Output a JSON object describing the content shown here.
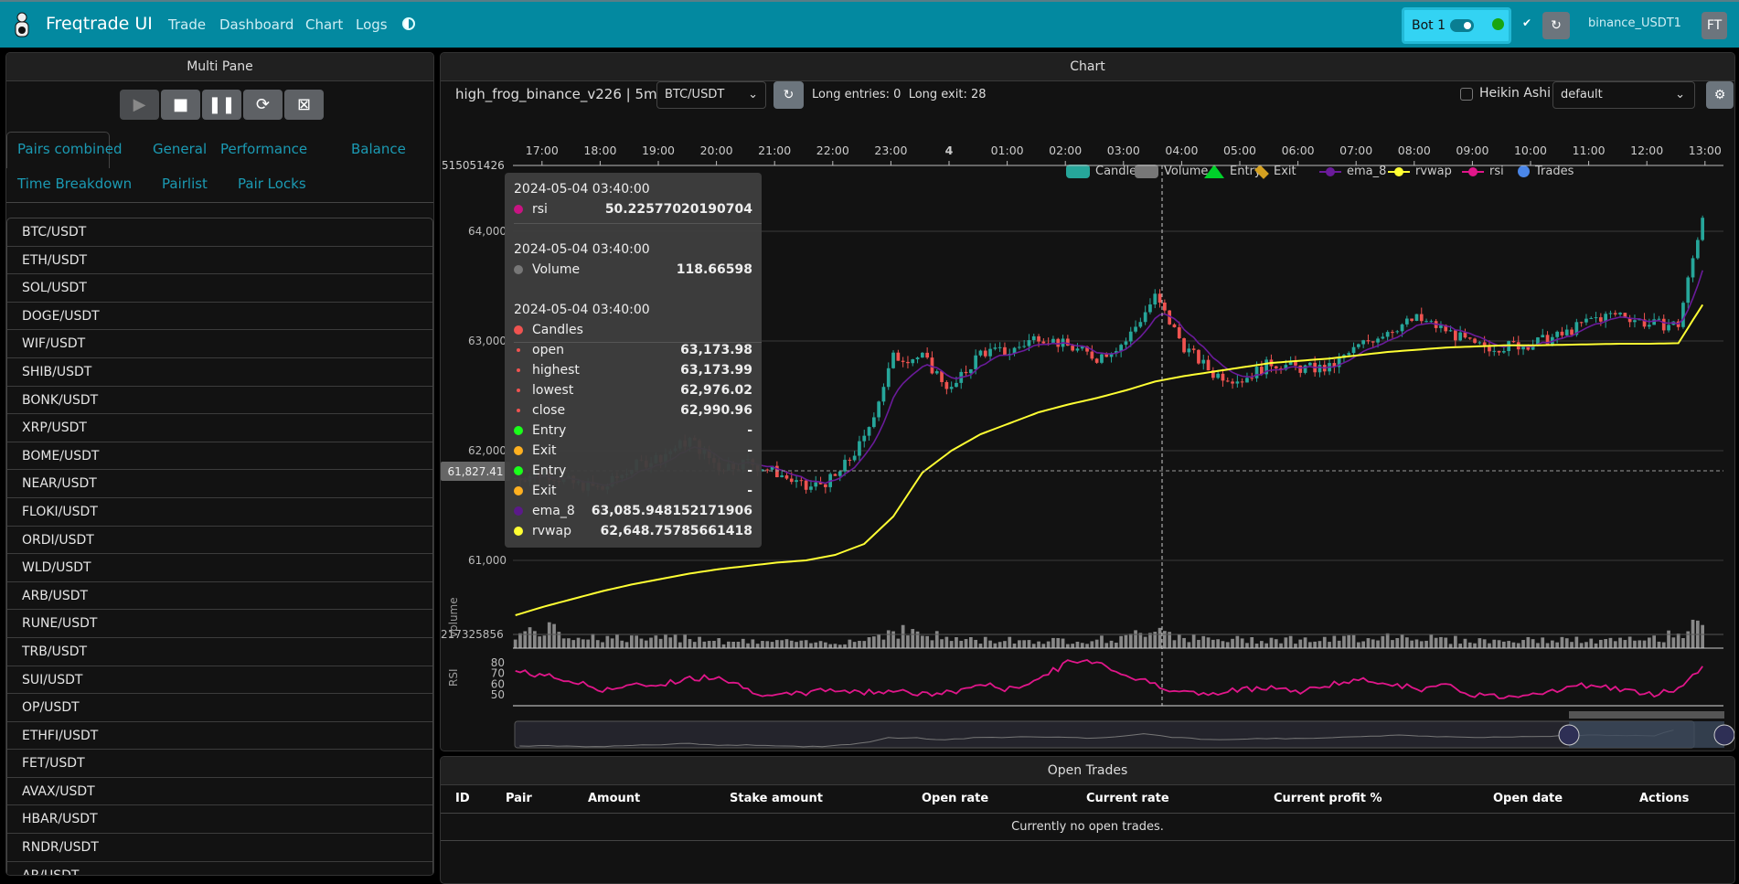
{
  "nav": {
    "brand": "Freqtrade UI",
    "links": [
      "Trade",
      "Dashboard",
      "Chart",
      "Logs"
    ],
    "bot_name": "Bot 1",
    "exchange": "binance_USDT1",
    "avatar": "FT",
    "bot_status_color": "#19a50f",
    "accent": "#0389a0"
  },
  "left": {
    "title": "Multi Pane",
    "controls": [
      "play-icon",
      "stop-icon",
      "pause-icon",
      "reload-icon",
      "force-exit-icon"
    ],
    "tabs": [
      "Pairs combined",
      "General",
      "Performance",
      "Balance",
      "Time Breakdown",
      "Pairlist",
      "Pair Locks"
    ],
    "active_tab": "Pairs combined",
    "pairs": [
      "BTC/USDT",
      "ETH/USDT",
      "SOL/USDT",
      "DOGE/USDT",
      "WIF/USDT",
      "SHIB/USDT",
      "BONK/USDT",
      "XRP/USDT",
      "BOME/USDT",
      "NEAR/USDT",
      "FLOKI/USDT",
      "ORDI/USDT",
      "WLD/USDT",
      "ARB/USDT",
      "RUNE/USDT",
      "TRB/USDT",
      "SUI/USDT",
      "OP/USDT",
      "ETHFI/USDT",
      "FET/USDT",
      "AVAX/USDT",
      "HBAR/USDT",
      "RNDR/USDT",
      "AR/USDT"
    ]
  },
  "chart": {
    "title": "Chart",
    "strategy": "high_frog_binance_v226 | 5m",
    "pair": "BTC/USDT",
    "signals": "Long entries: 0  Long exit: 28",
    "heikin_label": "Heikin Ashi",
    "heikin_checked": false,
    "plot_config": "default",
    "legend": [
      {
        "label": "Candles",
        "color": "#26a69a"
      },
      {
        "label": "Volume",
        "color": "#777777"
      },
      {
        "label": "Entry",
        "color": "#00d12a"
      },
      {
        "label": "Exit",
        "color": "#d4a020"
      },
      {
        "label": "ema_8",
        "color": "#6a1b9a"
      },
      {
        "label": "rvwap",
        "color": "#ffff33"
      },
      {
        "label": "rsi",
        "color": "#e0168a"
      },
      {
        "label": "Trades",
        "color": "#4a86e8"
      }
    ],
    "time_ticks": [
      "17:00",
      "18:00",
      "19:00",
      "20:00",
      "21:00",
      "22:00",
      "23:00",
      "4",
      "01:00",
      "02:00",
      "03:00",
      "04:00",
      "05:00",
      "06:00",
      "07:00",
      "08:00",
      "09:00",
      "10:00",
      "11:00",
      "12:00",
      "13:00"
    ],
    "price_ticks": [
      "64,000",
      "63,000",
      "62,000",
      "61,000"
    ],
    "top_label": "515051426",
    "volume_label": "217325856",
    "volume_axis": "Volume",
    "rsi_axis": "RSI",
    "rsi_ticks": [
      "80",
      "70",
      "60",
      "50"
    ],
    "crosshair_price": "61,827.41",
    "tooltip": {
      "date": "2024-05-04 03:40:00",
      "rsi": {
        "label": "rsi",
        "value": "50.22577020190704"
      },
      "volume": {
        "label": "Volume",
        "value": "118.66598"
      },
      "candles": "Candles",
      "ohlc": [
        {
          "label": "open",
          "value": "63,173.98"
        },
        {
          "label": "highest",
          "value": "63,173.99"
        },
        {
          "label": "lowest",
          "value": "62,976.02"
        },
        {
          "label": "close",
          "value": "62,990.96"
        }
      ],
      "signals": [
        {
          "label": "Entry",
          "value": "-",
          "color": "#1aff1a"
        },
        {
          "label": "Exit",
          "value": "-",
          "color": "#ffb020"
        },
        {
          "label": "Entry",
          "value": "-",
          "color": "#1aff1a"
        },
        {
          "label": "Exit",
          "value": "-",
          "color": "#ffb020"
        }
      ],
      "ema": {
        "label": "ema_8",
        "value": "63,085.948152171906"
      },
      "rvwap": {
        "label": "rvwap",
        "value": "62,648.75785661418"
      }
    },
    "chart_data": {
      "type": "candlestick",
      "x_start": "16:30",
      "x_step": "30min",
      "close": [
        61750,
        61800,
        61700,
        61650,
        61850,
        61950,
        62100,
        61850,
        61900,
        61800,
        61650,
        61750,
        62100,
        62850,
        62850,
        62550,
        62900,
        62900,
        63050,
        62950,
        62850,
        63000,
        63400,
        62950,
        62700,
        62650,
        62800,
        62750,
        62750,
        62950,
        63100,
        63200,
        63100,
        62950,
        62950,
        62980,
        63050,
        63200,
        63250,
        63150,
        63150,
        64350
      ],
      "rvwap": [
        60500,
        60580,
        60650,
        60720,
        60780,
        60830,
        60880,
        60920,
        60950,
        60980,
        61000,
        61050,
        61150,
        61400,
        61800,
        62000,
        62150,
        62250,
        62350,
        62420,
        62480,
        62550,
        62630,
        62680,
        62720,
        62760,
        62800,
        62820,
        62840,
        62870,
        62900,
        62920,
        62940,
        62950,
        62960,
        62960,
        62965,
        62970,
        62975,
        62975,
        62980,
        63400
      ],
      "rsi": [
        72,
        68,
        62,
        55,
        58,
        60,
        65,
        68,
        55,
        48,
        52,
        55,
        52,
        55,
        50,
        52,
        60,
        55,
        65,
        80,
        82,
        68,
        60,
        52,
        50,
        55,
        58,
        52,
        60,
        63,
        62,
        55,
        58,
        50,
        48,
        52,
        55,
        60,
        55,
        50,
        56,
        80
      ],
      "volume": [
        90,
        120,
        80,
        70,
        60,
        55,
        80,
        50,
        40,
        45,
        35,
        40,
        55,
        120,
        90,
        60,
        50,
        55,
        45,
        50,
        55,
        60,
        150,
        70,
        50,
        55,
        60,
        55,
        50,
        70,
        80,
        75,
        55,
        50,
        45,
        50,
        55,
        45,
        50,
        55,
        90,
        260
      ],
      "ylim": [
        60400,
        64500
      ]
    }
  },
  "trades": {
    "title": "Open Trades",
    "columns": [
      "ID",
      "Pair",
      "Amount",
      "Stake amount",
      "Open rate",
      "Current rate",
      "Current profit %",
      "Open date",
      "Actions"
    ],
    "empty": "Currently no open trades."
  }
}
